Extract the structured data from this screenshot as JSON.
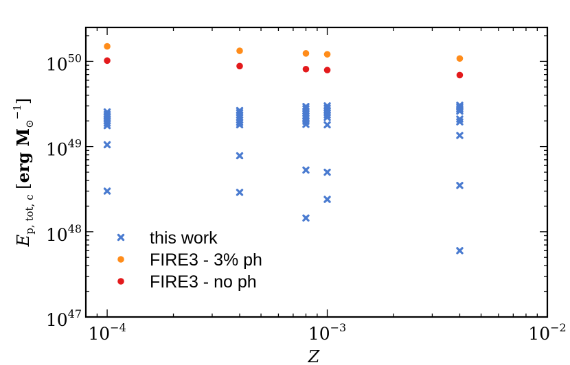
{
  "chart_data": {
    "type": "scatter",
    "xscale": "log",
    "yscale": "log",
    "xlim": [
      8e-05,
      0.01
    ],
    "ylim": [
      1e+47,
      2.5e+50
    ],
    "xlabel": "Z",
    "ylabel": "E_{p,tot,c} [erg M_⊙^{-1}]",
    "grid": false,
    "legend_position": "lower-left",
    "x_ticks": [
      {
        "value": 0.0001,
        "base": "10",
        "exp": "−4"
      },
      {
        "value": 0.001,
        "base": "10",
        "exp": "−3"
      },
      {
        "value": 0.01,
        "base": "10",
        "exp": "−2"
      }
    ],
    "y_ticks": [
      {
        "value": 1e+47,
        "base": "10",
        "exp": "47"
      },
      {
        "value": 1e+48,
        "base": "10",
        "exp": "48"
      },
      {
        "value": 1e+49,
        "base": "10",
        "exp": "49"
      },
      {
        "value": 1e+50,
        "base": "10",
        "exp": "50"
      }
    ],
    "series": [
      {
        "name": "this work",
        "color": "#4a7bd0",
        "marker": "x",
        "points": [
          [
            0.0001,
            2.55e+49
          ],
          [
            0.0001,
            2.38e+49
          ],
          [
            0.0001,
            2.25e+49
          ],
          [
            0.0001,
            2.12e+49
          ],
          [
            0.0001,
            2e+49
          ],
          [
            0.0001,
            1.88e+49
          ],
          [
            0.0001,
            1.76e+49
          ],
          [
            0.0001,
            1.05e+49
          ],
          [
            0.0001,
            3e+48
          ],
          [
            0.0004,
            2.65e+49
          ],
          [
            0.0004,
            2.5e+49
          ],
          [
            0.0004,
            2.35e+49
          ],
          [
            0.0004,
            2.2e+49
          ],
          [
            0.0004,
            2.05e+49
          ],
          [
            0.0004,
            1.92e+49
          ],
          [
            0.0004,
            1.8e+49
          ],
          [
            0.0004,
            7.8e+48
          ],
          [
            0.0004,
            2.9e+48
          ],
          [
            0.0008,
            2.95e+49
          ],
          [
            0.0008,
            2.78e+49
          ],
          [
            0.0008,
            2.6e+49
          ],
          [
            0.0008,
            2.45e+49
          ],
          [
            0.0008,
            2.3e+49
          ],
          [
            0.0008,
            2.15e+49
          ],
          [
            0.0008,
            1.98e+49
          ],
          [
            0.0008,
            1.82e+49
          ],
          [
            0.0008,
            5.3e+48
          ],
          [
            0.0008,
            1.45e+48
          ],
          [
            0.001,
            3e+49
          ],
          [
            0.001,
            2.82e+49
          ],
          [
            0.001,
            2.65e+49
          ],
          [
            0.001,
            2.5e+49
          ],
          [
            0.001,
            2.35e+49
          ],
          [
            0.001,
            2.2e+49
          ],
          [
            0.001,
            1.8e+49
          ],
          [
            0.001,
            5e+48
          ],
          [
            0.001,
            2.4e+48
          ],
          [
            0.004,
            3.05e+49
          ],
          [
            0.004,
            2.9e+49
          ],
          [
            0.004,
            2.75e+49
          ],
          [
            0.004,
            2.6e+49
          ],
          [
            0.004,
            2.1e+49
          ],
          [
            0.004,
            1.95e+49
          ],
          [
            0.004,
            1.35e+49
          ],
          [
            0.004,
            3.5e+48
          ],
          [
            0.004,
            6e+47
          ]
        ]
      },
      {
        "name": "FIRE3 - 3% ph",
        "color": "#ff8c1a",
        "marker": "o",
        "points": [
          [
            0.0001,
            1.5e+50
          ],
          [
            0.0004,
            1.33e+50
          ],
          [
            0.0008,
            1.24e+50
          ],
          [
            0.001,
            1.21e+50
          ],
          [
            0.004,
            1.08e+50
          ]
        ]
      },
      {
        "name": "FIRE3 - no ph",
        "color": "#e31a1c",
        "marker": "o",
        "points": [
          [
            0.0001,
            1.02e+50
          ],
          [
            0.0004,
            8.8e+49
          ],
          [
            0.0008,
            8.1e+49
          ],
          [
            0.001,
            7.9e+49
          ],
          [
            0.004,
            6.9e+49
          ]
        ]
      }
    ]
  }
}
